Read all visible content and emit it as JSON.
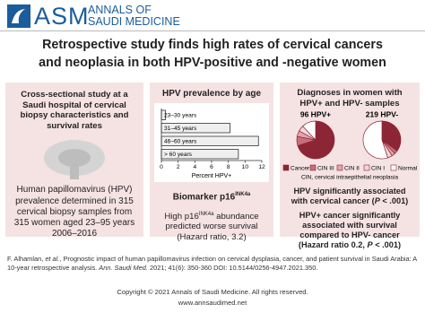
{
  "header": {
    "logo": "ASM",
    "journal": [
      "ANNALS OF",
      "SAUDI MEDICINE"
    ]
  },
  "title": [
    "Retrospective study finds high rates of cervical cancers",
    "and neoplasia in both HPV-positive and -negative women"
  ],
  "left_panel": {
    "heading": "Cross-sectional study at a Saudi hospital of cervical biopsy characteristics and survival rates",
    "text": "Human papillomavirus (HPV) prevalence determined in 315 cervical biopsy samples from 315 women aged 23–95 years 2006–2016"
  },
  "middle_panel": {
    "biomarker": [
      "Biomarker p16",
      "INK4a"
    ],
    "result": [
      "High p16",
      "INK4a",
      " abundance predicted worse survival (Hazard ratio, 3.2)"
    ]
  },
  "right_panel": {
    "finding1": [
      "HPV significantly associated with cervical cancer (",
      "P",
      " < .001)"
    ],
    "finding2": [
      "HPV+ cancer significantly associated with survival compared to HPV- cancer (Hazard ratio 0.2, ",
      "P",
      " < .001)"
    ]
  },
  "chart_data": [
    {
      "type": "bar",
      "orientation": "horizontal",
      "title": "HPV prevalence by age",
      "xlabel": "Percent HPV+",
      "categories": [
        "23–30 years",
        "31–45 years",
        "46–60 years",
        "> 60 years"
      ],
      "values": [
        0.5,
        8.2,
        11.6,
        9.2
      ],
      "color": "#efefef",
      "xlim": [
        0,
        12
      ],
      "xticks": [
        0,
        2,
        4,
        6,
        8,
        10,
        12
      ]
    },
    {
      "type": "pie",
      "title": "Diagnoses in women with HPV+ and HPV- samples",
      "categories": [
        "Cancer",
        "CIN III",
        "CIN II",
        "CIN I",
        "Normal"
      ],
      "colors": [
        "#8c2535",
        "#c4707b",
        "#e2a4ac",
        "#f4d5d8",
        "#ffffff"
      ],
      "series": [
        {
          "name": "96 HPV+",
          "values": [
            70,
            8,
            5,
            5,
            12
          ]
        },
        {
          "name": "219 HPV-",
          "values": [
            35,
            3,
            3,
            4,
            55
          ]
        }
      ],
      "note": "CIN, cervical intraepithelial neoplasia"
    }
  ],
  "footer": {
    "citation": [
      "F. Alhamlan, ",
      "et al.",
      ", Prognostic impact of human papillomavirus infection on cervical dysplasia, cancer, and patient survival in Saudi Arabia: A 10-year retrospective analysis. ",
      "Ann. Saudi Med.",
      " 2021; 41(6): 350-360 DOI: 10.5144/0256-4947.2021.350."
    ],
    "copyright": "Copyright © 2021 Annals of Saudi Medicine. All rights reserved.",
    "url": "www.annsaudimed.net"
  }
}
